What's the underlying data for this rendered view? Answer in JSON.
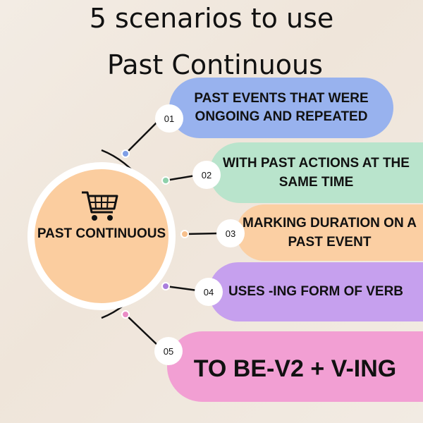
{
  "title": {
    "line1": "5 scenarios to use",
    "line2": "Past Continuous"
  },
  "hub": {
    "label": "PAST CONTINUOUS",
    "icon": "shopping-cart-icon",
    "color": "#fbcd9f"
  },
  "items": [
    {
      "number": "01",
      "text": "PAST EVENTS THAT WERE ONGOING AND REPEATED",
      "color": "#98b2ee",
      "dot_color": "#7f9fe6"
    },
    {
      "number": "02",
      "text": "WITH PAST ACTIONS AT THE SAME TIME",
      "color": "#b9e4cc",
      "dot_color": "#8fd1ab"
    },
    {
      "number": "03",
      "text": "MARKING DURATION ON A PAST EVENT",
      "color": "#fbcfa3",
      "dot_color": "#f7c08d"
    },
    {
      "number": "04",
      "text": "USES -ING FORM OF VERB",
      "color": "#c6a0ee",
      "dot_color": "#a97ddc"
    },
    {
      "number": "05",
      "text": "TO BE-V2 + V-ING",
      "color": "#f29fd3",
      "dot_color": "#ea8cc6"
    }
  ]
}
